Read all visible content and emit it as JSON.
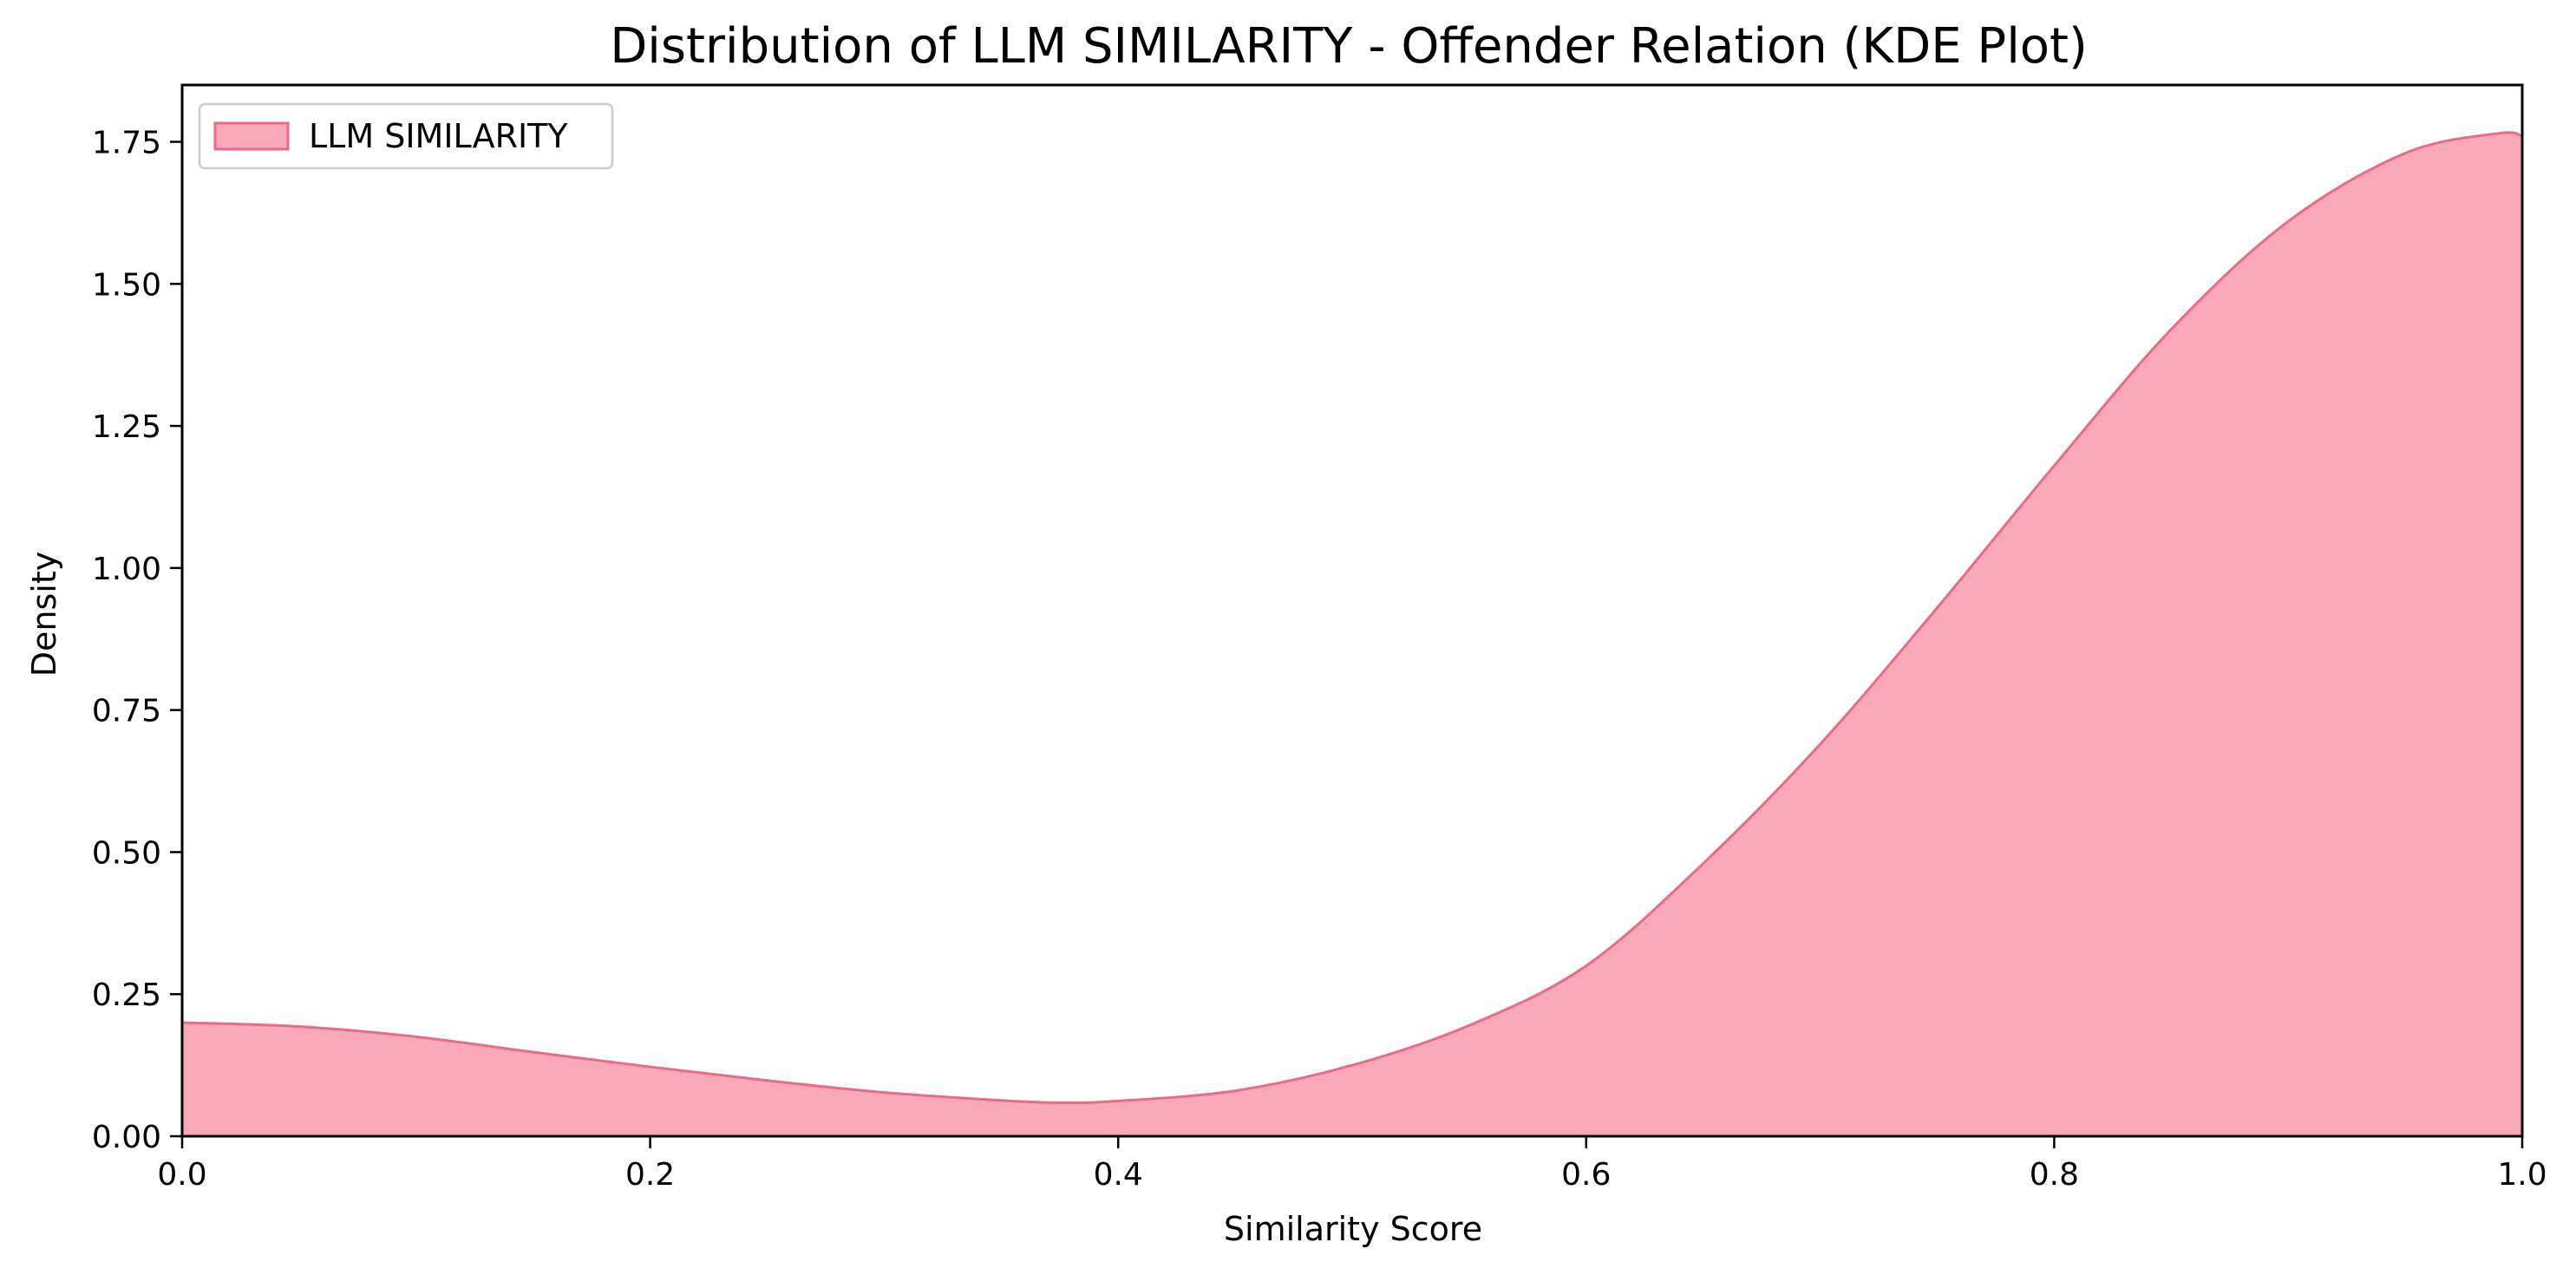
{
  "chart_data": {
    "type": "area",
    "title": "Distribution of LLM SIMILARITY - Offender Relation (KDE Plot)",
    "xlabel": "Similarity Score",
    "ylabel": "Density",
    "xlim": [
      0.0,
      1.0
    ],
    "ylim": [
      0.0,
      1.85
    ],
    "xticks": [
      0.0,
      0.2,
      0.4,
      0.6,
      0.8,
      1.0
    ],
    "xtick_labels": [
      "0.0",
      "0.2",
      "0.4",
      "0.6",
      "0.8",
      "1.0"
    ],
    "yticks": [
      0.0,
      0.25,
      0.5,
      0.75,
      1.0,
      1.25,
      1.5,
      1.75
    ],
    "ytick_labels": [
      "0.00",
      "0.25",
      "0.50",
      "0.75",
      "1.00",
      "1.25",
      "1.50",
      "1.75"
    ],
    "grid": false,
    "legend_position": "top-left",
    "series": [
      {
        "name": "LLM SIMILARITY",
        "fill_color": "#f8a8b6",
        "line_color": "#ec6a86",
        "x": [
          0.0,
          0.05,
          0.1,
          0.15,
          0.2,
          0.25,
          0.3,
          0.35,
          0.375,
          0.4,
          0.45,
          0.5,
          0.55,
          0.6,
          0.65,
          0.7,
          0.75,
          0.8,
          0.85,
          0.9,
          0.95,
          0.99,
          1.0
        ],
        "y": [
          0.2,
          0.193,
          0.175,
          0.148,
          0.122,
          0.098,
          0.077,
          0.063,
          0.059,
          0.062,
          0.08,
          0.125,
          0.195,
          0.3,
          0.48,
          0.69,
          0.93,
          1.18,
          1.42,
          1.61,
          1.73,
          1.765,
          1.76
        ]
      }
    ]
  }
}
